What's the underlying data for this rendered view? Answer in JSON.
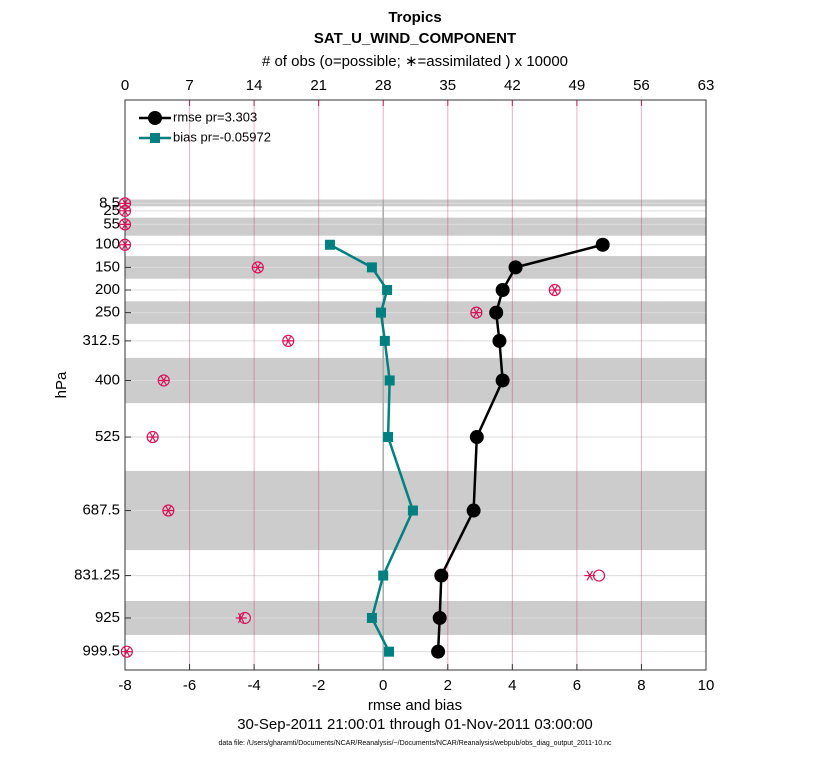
{
  "chart_data": {
    "type": "profile",
    "title": "Tropics",
    "subtitle": "SAT_U_WIND_COMPONENT",
    "x2label": "# of obs (o=possible; ∗=assimilated ) x 10000",
    "xlabel": "rmse and bias",
    "ylabel": "hPa",
    "date_range": "30-Sep-2011 21:00:01 through 01-Nov-2011 03:00:00",
    "footnote": "data file: /Users/gharamti/Documents/NCAR/Reanalysis/~/Documents/NCAR/Reanalysis/webpub/obs_diag_output_2011-10.nc",
    "y": [
      8.5,
      25,
      55,
      100,
      150,
      200,
      250,
      312.5,
      400,
      525,
      687.5,
      831.25,
      925,
      999.5
    ],
    "ylim": [
      -220,
      1040
    ],
    "y_reversed": true,
    "yticks": [
      8.5,
      25,
      55,
      100,
      150,
      200,
      250,
      312.5,
      400,
      525,
      687.5,
      831.25,
      925,
      999.5
    ],
    "xlim": [
      -8,
      10
    ],
    "xticks": [
      -8,
      -6,
      -4,
      -2,
      0,
      2,
      4,
      6,
      8,
      10
    ],
    "x2lim": [
      0,
      63
    ],
    "x2ticks": [
      0,
      7,
      14,
      21,
      28,
      35,
      42,
      49,
      56,
      63
    ],
    "x2color": "#d6145a",
    "grid": true,
    "legend": "upper left",
    "layer_bands": [
      [
        0,
        15
      ],
      [
        40,
        80
      ],
      [
        125,
        175
      ],
      [
        225,
        275
      ],
      [
        350,
        450
      ],
      [
        600,
        775
      ],
      [
        887.5,
        962.5
      ]
    ],
    "series": [
      {
        "name": "rmse pr=3.303",
        "color": "#000000",
        "marker": "circle",
        "values": [
          null,
          null,
          null,
          6.8,
          4.1,
          3.7,
          3.5,
          3.6,
          3.7,
          2.9,
          2.8,
          1.8,
          1.75,
          1.7
        ]
      },
      {
        "name": "bias pr=-0.05972",
        "color": "#008080",
        "marker": "square",
        "values": [
          null,
          null,
          null,
          -1.65,
          -0.35,
          0.12,
          -0.07,
          0.05,
          0.2,
          0.15,
          0.92,
          0,
          -0.35,
          0.18
        ]
      }
    ],
    "obs_possible": [
      0,
      0,
      0,
      0,
      14.4,
      46.6,
      38.1,
      17.7,
      4.2,
      3.0,
      4.7,
      51.4,
      13.0,
      0.2
    ],
    "obs_assimilated": [
      0,
      0,
      0,
      0,
      14.4,
      46.6,
      38.1,
      17.7,
      4.2,
      3.0,
      4.7,
      50.4,
      12.6,
      0.2
    ]
  }
}
